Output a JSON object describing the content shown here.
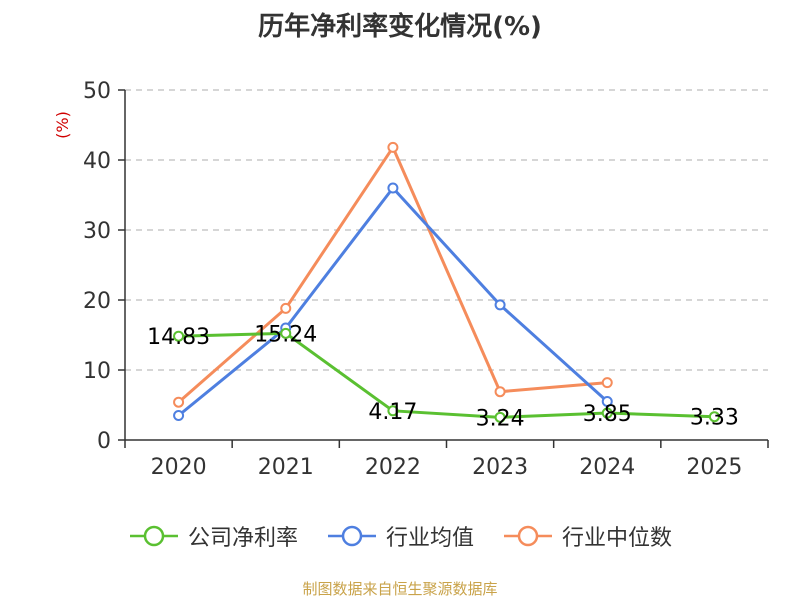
{
  "chart_data": {
    "type": "line",
    "title": "历年净利率变化情况(%)",
    "ylabel": "(%)",
    "xlabel": "",
    "categories": [
      "2020",
      "2021",
      "2022",
      "2023",
      "2024",
      "2025"
    ],
    "ylim": [
      0,
      50
    ],
    "yticks": [
      0,
      10,
      20,
      30,
      40,
      50
    ],
    "grid": true,
    "legend_position": "bottom",
    "series": [
      {
        "name": "公司净利率",
        "color": "#5ac031",
        "values": [
          14.83,
          15.24,
          4.17,
          3.24,
          3.85,
          3.33
        ],
        "labels": [
          "14.83",
          "15.24",
          "4.17",
          "3.24",
          "3.85",
          "3.33"
        ]
      },
      {
        "name": "行业均值",
        "color": "#4e7fe0",
        "values": [
          3.5,
          16.0,
          36.0,
          19.3,
          5.5,
          null
        ]
      },
      {
        "name": "行业中位数",
        "color": "#f58c5b",
        "values": [
          5.4,
          18.8,
          41.8,
          6.9,
          8.2,
          null
        ]
      }
    ]
  },
  "footer": {
    "source": "制图数据来自恒生聚源数据库"
  }
}
